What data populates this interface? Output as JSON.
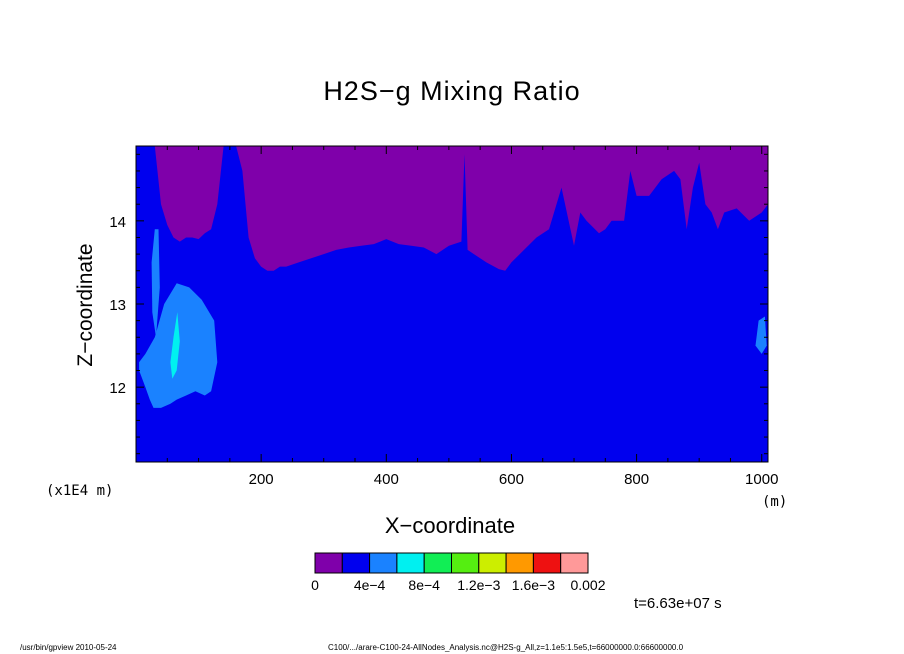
{
  "chart_data": {
    "type": "heatmap",
    "title": "H2S−g Mixing Ratio",
    "xlabel": "X−coordinate",
    "ylabel": "Z−coordinate",
    "x_unit": "(m)",
    "y_unit": "(x1E4 m)",
    "xlim": [
      0,
      1010
    ],
    "ylim": [
      11.1,
      14.9
    ],
    "x_ticks": [
      200,
      400,
      600,
      800,
      1000
    ],
    "y_ticks": [
      12,
      13,
      14
    ],
    "x_tick_labels": [
      "200",
      "400",
      "600",
      "800",
      "1000"
    ],
    "y_tick_labels": [
      "12",
      "13",
      "14"
    ],
    "levels": [
      0,
      0.0002,
      0.0004,
      0.0006,
      0.0008,
      0.001,
      0.0012,
      0.0014,
      0.0016,
      0.0018,
      0.002
    ],
    "level_labels": [
      "0",
      "4e−4",
      "8e−4",
      "1.2e−3",
      "1.6e−3",
      "0.002"
    ],
    "colors": [
      "#7f00aa",
      "#0000ee",
      "#1a82ff",
      "#00f0f0",
      "#11ee55",
      "#55ee11",
      "#ccee00",
      "#ff9900",
      "#ee1111",
      "#ff9999"
    ],
    "boundary": {
      "description_free": true,
      "x": [
        0,
        20,
        30,
        40,
        50,
        60,
        70,
        80,
        90,
        100,
        110,
        120,
        130,
        140,
        150,
        160,
        170,
        180,
        190,
        200,
        210,
        220,
        230,
        240,
        260,
        280,
        300,
        320,
        340,
        360,
        380,
        400,
        420,
        440,
        460,
        480,
        500,
        520,
        525,
        530,
        540,
        560,
        580,
        590,
        600,
        620,
        640,
        660,
        680,
        700,
        710,
        720,
        740,
        750,
        760,
        770,
        780,
        790,
        800,
        820,
        840,
        860,
        870,
        880,
        890,
        900,
        910,
        920,
        930,
        940,
        960,
        980,
        1000,
        1010
      ],
      "z": [
        14.9,
        14.9,
        14.9,
        14.2,
        13.95,
        13.8,
        13.75,
        13.8,
        13.8,
        13.78,
        13.85,
        13.9,
        14.2,
        14.9,
        14.9,
        14.9,
        14.6,
        13.8,
        13.55,
        13.45,
        13.4,
        13.4,
        13.45,
        13.45,
        13.5,
        13.55,
        13.6,
        13.65,
        13.68,
        13.7,
        13.72,
        13.78,
        13.72,
        13.7,
        13.68,
        13.6,
        13.7,
        13.75,
        14.8,
        13.65,
        13.6,
        13.5,
        13.42,
        13.4,
        13.5,
        13.65,
        13.8,
        13.9,
        14.4,
        13.7,
        14.1,
        14.0,
        13.85,
        13.9,
        14.0,
        14.0,
        14.0,
        14.6,
        14.3,
        14.3,
        14.5,
        14.6,
        14.5,
        13.9,
        14.4,
        14.7,
        14.2,
        14.1,
        13.9,
        14.1,
        14.15,
        14.0,
        14.1,
        14.2
      ]
    },
    "patches": [
      {
        "level": 2,
        "x": [
          5,
          15,
          22,
          28,
          40,
          55,
          65,
          80,
          95,
          110,
          120,
          130,
          125,
          105,
          85,
          65,
          45,
          30,
          15,
          5
        ],
        "z": [
          12.2,
          12.0,
          11.85,
          11.75,
          11.75,
          11.8,
          11.85,
          11.9,
          11.95,
          11.9,
          11.95,
          12.3,
          12.8,
          13.05,
          13.2,
          13.25,
          13.0,
          12.6,
          12.4,
          12.3
        ]
      },
      {
        "level": 2,
        "x": [
          25,
          30,
          36,
          38,
          32,
          26
        ],
        "z": [
          13.5,
          13.9,
          13.9,
          13.2,
          12.6,
          12.9
        ]
      },
      {
        "level": 3,
        "x": [
          55,
          60,
          66,
          70,
          65,
          58
        ],
        "z": [
          12.3,
          12.6,
          12.9,
          12.55,
          12.2,
          12.1
        ]
      },
      {
        "level": 2,
        "x": [
          990,
          995,
          1005,
          1008,
          1000
        ],
        "z": [
          12.5,
          12.8,
          12.85,
          12.5,
          12.4
        ]
      }
    ]
  },
  "time_label": "t=6.63e+07  s",
  "footer": {
    "left": "/usr/bin/gpview   2010-05-24",
    "right": "C100/.../arare-C100-24-AllNodes_Analysis.nc@H2S-g_All,z=1.1e5:1.5e5,t=66000000.0:66600000.0"
  }
}
